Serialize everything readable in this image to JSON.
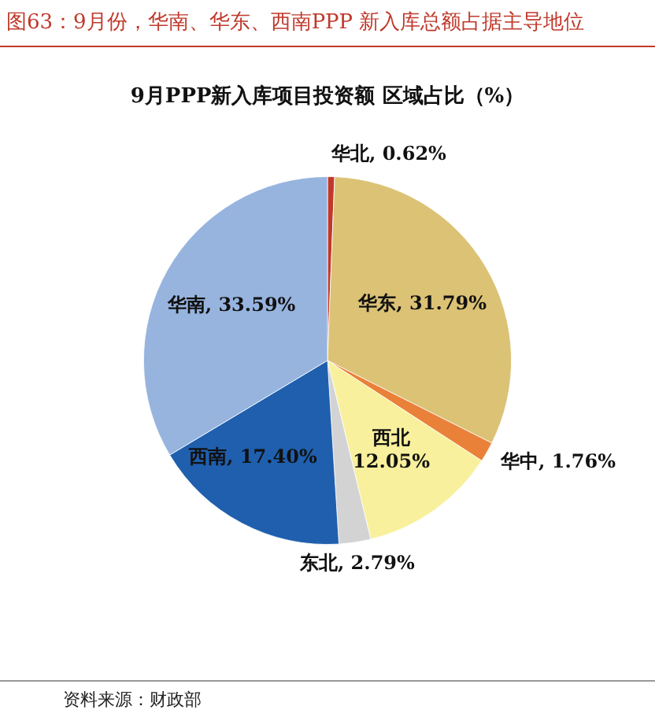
{
  "chart_data": {
    "type": "pie",
    "title": "图63：9月份，华南、华东、西南PPP 新入库总额占据主导地位",
    "subtitle": "9月PPP新入库项目投资额 区域占比（%）",
    "categories": [
      "华北",
      "华东",
      "华中",
      "西北",
      "东北",
      "西南",
      "华南"
    ],
    "values": [
      0.62,
      31.79,
      1.76,
      12.05,
      2.79,
      17.4,
      33.59
    ],
    "value_labels": [
      "0.62%",
      "31.79%",
      "1.76%",
      "12.05%",
      "2.79%",
      "17.40%",
      "33.59%"
    ],
    "colors": [
      "#c0392b",
      "#dbc275",
      "#ea8139",
      "#f8f09c",
      "#d3d3d3",
      "#1f5fae",
      "#97b4df"
    ],
    "legend": false,
    "annotations": [
      "资料来源：财政部"
    ]
  }
}
